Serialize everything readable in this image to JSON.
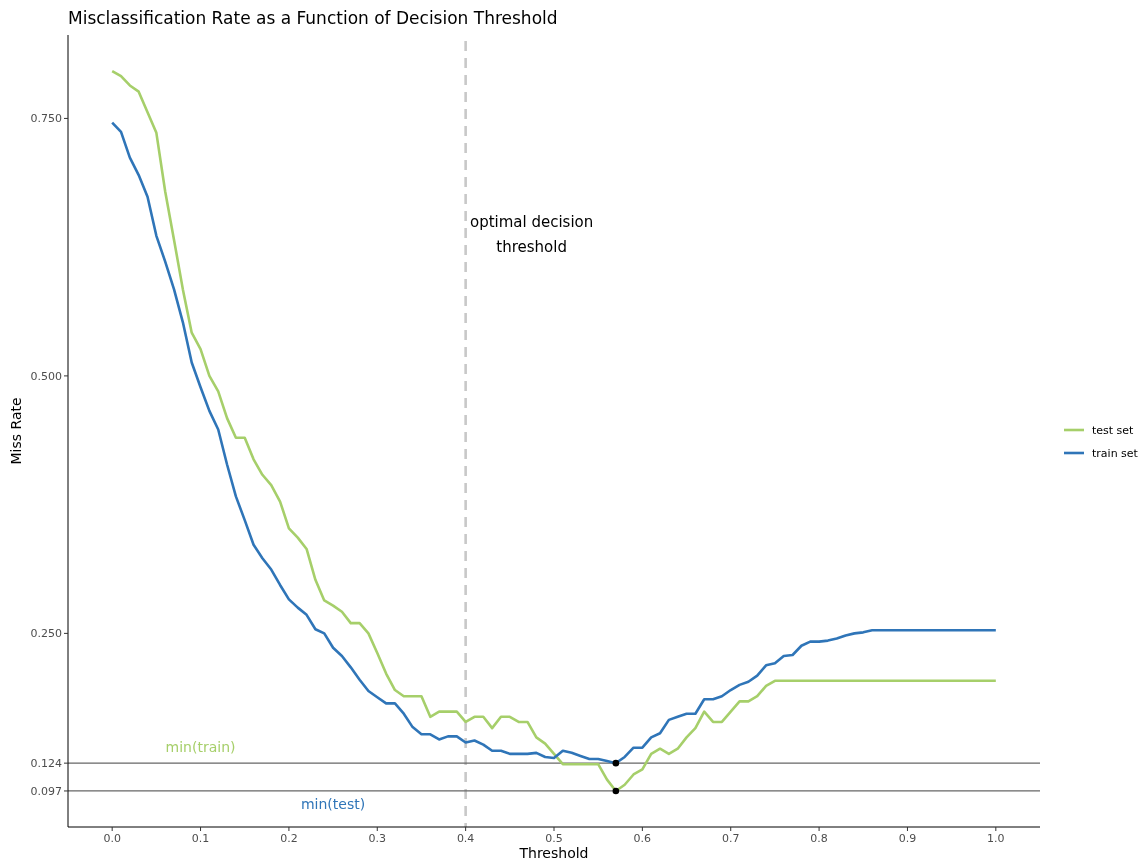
{
  "chart_data": {
    "type": "line",
    "title": "Misclassification Rate as a Function of Decision Threshold",
    "xlabel": "Threshold",
    "ylabel": "Miss Rate",
    "xlim": [
      -0.05,
      1.05
    ],
    "ylim": [
      0.062,
      0.831
    ],
    "xticks": [
      {
        "value": 0,
        "label": "0.0"
      },
      {
        "value": 0.1,
        "label": "0.1"
      },
      {
        "value": 0.2,
        "label": "0.2"
      },
      {
        "value": 0.3,
        "label": "0.3"
      },
      {
        "value": 0.4,
        "label": "0.4"
      },
      {
        "value": 0.5,
        "label": "0.5"
      },
      {
        "value": 0.6,
        "label": "0.6"
      },
      {
        "value": 0.7,
        "label": "0.7"
      },
      {
        "value": 0.8,
        "label": "0.8"
      },
      {
        "value": 0.9,
        "label": "0.9"
      },
      {
        "value": 1,
        "label": "1.0"
      }
    ],
    "yticks": [
      0.097,
      0.124,
      {
        "value": 0.25,
        "label": "0.250"
      },
      {
        "value": 0.5,
        "label": "0.500"
      },
      {
        "value": 0.75,
        "label": "0.750"
      }
    ],
    "grid": false,
    "legend": "right",
    "line_style": "solid",
    "series": [
      {
        "name": "test set",
        "color": "#a6cf6a",
        "x": [
          0,
          0.01,
          0.02,
          0.03,
          0.04,
          0.05,
          0.06,
          0.07,
          0.08,
          0.09,
          0.1,
          0.11,
          0.12,
          0.13,
          0.14,
          0.15,
          0.16,
          0.17,
          0.18,
          0.19,
          0.2,
          0.21,
          0.22,
          0.23,
          0.24,
          0.25,
          0.26,
          0.27,
          0.28,
          0.29,
          0.3,
          0.31,
          0.32,
          0.33,
          0.34,
          0.35,
          0.36,
          0.37,
          0.38,
          0.39,
          0.4,
          0.41,
          0.42,
          0.43,
          0.44,
          0.45,
          0.46,
          0.47,
          0.48,
          0.49,
          0.5,
          0.51,
          0.52,
          0.53,
          0.54,
          0.55,
          0.56,
          0.57,
          0.58,
          0.59,
          0.6,
          0.61,
          0.62,
          0.63,
          0.64,
          0.65,
          0.66,
          0.67,
          0.68,
          0.69,
          0.7,
          0.71,
          0.72,
          0.73,
          0.74,
          0.75,
          1
        ],
        "values": [
          0.796,
          0.791,
          0.782,
          0.776,
          0.756,
          0.736,
          0.679,
          0.632,
          0.584,
          0.542,
          0.526,
          0.5,
          0.485,
          0.459,
          0.44,
          0.44,
          0.419,
          0.404,
          0.394,
          0.378,
          0.352,
          0.343,
          0.332,
          0.302,
          0.282,
          0.277,
          0.271,
          0.26,
          0.26,
          0.25,
          0.231,
          0.211,
          0.195,
          0.189,
          0.189,
          0.189,
          0.169,
          0.174,
          0.174,
          0.174,
          0.164,
          0.169,
          0.169,
          0.158,
          0.169,
          0.169,
          0.164,
          0.164,
          0.149,
          0.143,
          0.133,
          0.123,
          0.123,
          0.123,
          0.123,
          0.123,
          0.108,
          0.097,
          0.103,
          0.113,
          0.118,
          0.133,
          0.138,
          0.133,
          0.138,
          0.149,
          0.158,
          0.174,
          0.164,
          0.164,
          0.174,
          0.184,
          0.184,
          0.189,
          0.199,
          0.204,
          0.204
        ]
      },
      {
        "name": "train set",
        "color": "#2f75b8",
        "x": [
          0,
          0.01,
          0.02,
          0.03,
          0.04,
          0.05,
          0.06,
          0.07,
          0.08,
          0.09,
          0.1,
          0.11,
          0.12,
          0.13,
          0.14,
          0.15,
          0.16,
          0.17,
          0.18,
          0.19,
          0.2,
          0.21,
          0.22,
          0.23,
          0.24,
          0.25,
          0.26,
          0.27,
          0.28,
          0.29,
          0.3,
          0.31,
          0.32,
          0.33,
          0.34,
          0.35,
          0.36,
          0.37,
          0.38,
          0.39,
          0.4,
          0.41,
          0.42,
          0.43,
          0.44,
          0.45,
          0.46,
          0.47,
          0.48,
          0.49,
          0.5,
          0.51,
          0.52,
          0.53,
          0.54,
          0.55,
          0.56,
          0.57,
          0.58,
          0.59,
          0.6,
          0.61,
          0.62,
          0.63,
          0.64,
          0.65,
          0.66,
          0.67,
          0.68,
          0.69,
          0.7,
          0.71,
          0.72,
          0.73,
          0.74,
          0.75,
          0.76,
          0.77,
          0.78,
          0.79,
          0.8,
          0.81,
          0.82,
          0.83,
          0.84,
          0.85,
          0.86,
          1
        ],
        "values": [
          0.746,
          0.737,
          0.712,
          0.695,
          0.674,
          0.636,
          0.611,
          0.584,
          0.552,
          0.513,
          0.489,
          0.466,
          0.448,
          0.414,
          0.383,
          0.36,
          0.336,
          0.323,
          0.312,
          0.297,
          0.283,
          0.275,
          0.268,
          0.254,
          0.25,
          0.236,
          0.228,
          0.217,
          0.205,
          0.194,
          0.188,
          0.182,
          0.182,
          0.172,
          0.159,
          0.152,
          0.152,
          0.147,
          0.15,
          0.15,
          0.144,
          0.146,
          0.142,
          0.136,
          0.136,
          0.133,
          0.133,
          0.133,
          0.134,
          0.13,
          0.129,
          0.136,
          0.134,
          0.131,
          0.128,
          0.128,
          0.126,
          0.124,
          0.13,
          0.139,
          0.139,
          0.149,
          0.153,
          0.166,
          0.169,
          0.172,
          0.172,
          0.186,
          0.186,
          0.189,
          0.195,
          0.2,
          0.203,
          0.209,
          0.219,
          0.221,
          0.228,
          0.229,
          0.238,
          0.242,
          0.242,
          0.243,
          0.245,
          0.248,
          0.25,
          0.251,
          0.253,
          0.253
        ]
      },
      {
        "type": "scatter",
        "color": "#000000",
        "marker": "circle",
        "x": [
          0.57,
          0.57
        ],
        "values": [
          0.124,
          0.097
        ]
      }
    ],
    "ref_lines": [
      {
        "axis": "x",
        "value": 0.4,
        "label": "optimal decision threshold",
        "color": "#c8c8c8",
        "line_style": "dashed"
      },
      {
        "axis": "y",
        "value": 0.124,
        "color": "#666666",
        "line_style": "solid"
      },
      {
        "axis": "y",
        "value": 0.097,
        "color": "#666666",
        "line_style": "solid"
      }
    ],
    "annotations": [
      {
        "text": "min(train)",
        "x": 0.1,
        "y": 0.124
      },
      {
        "text": "min(test)",
        "x": 0.25,
        "y": 0.097
      }
    ]
  }
}
